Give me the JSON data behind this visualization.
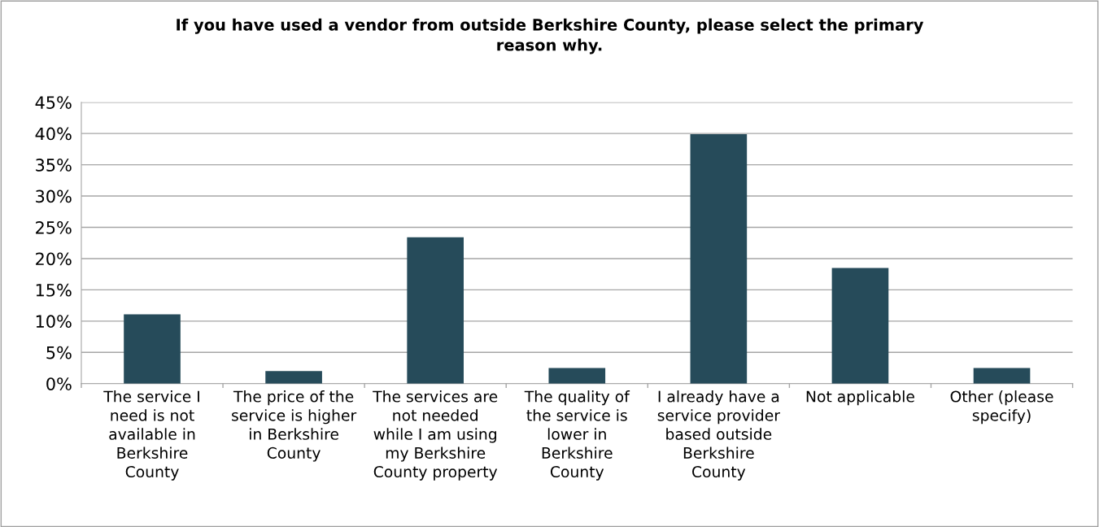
{
  "chart_data": {
    "type": "bar",
    "title": "If you have used a vendor from outside Berkshire County, please select the primary\nreason why.",
    "categories": [
      "The service I\nneed is not\navailable in\nBerkshire\nCounty",
      "The price of the\nservice is higher\nin Berkshire\nCounty",
      "The services are\nnot needed\nwhile I am using\nmy Berkshire\nCounty property",
      "The quality of\nthe service is\nlower in\nBerkshire\nCounty",
      "I already have a\nservice provider\nbased outside\nBerkshire\nCounty",
      "Not applicable",
      "Other (please\nspecify)"
    ],
    "values": [
      11.1,
      2.0,
      23.4,
      2.5,
      39.9,
      18.5,
      2.5
    ],
    "color": "#264b5a",
    "ylim": [
      0,
      45
    ],
    "yticks": [
      {
        "value": 0,
        "label": "0%"
      },
      {
        "value": 5,
        "label": "5%"
      },
      {
        "value": 10,
        "label": "10%"
      },
      {
        "value": 15,
        "label": "15%"
      },
      {
        "value": 20,
        "label": "20%"
      },
      {
        "value": 25,
        "label": "25%"
      },
      {
        "value": 30,
        "label": "30%"
      },
      {
        "value": 35,
        "label": "35%"
      },
      {
        "value": 40,
        "label": "40%"
      },
      {
        "value": 45,
        "label": "45%"
      }
    ],
    "grid": "y",
    "legend": false
  }
}
